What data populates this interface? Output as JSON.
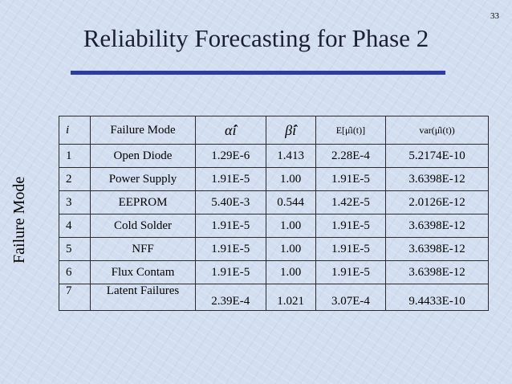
{
  "slide_number": "33",
  "title": "Reliability Forecasting for Phase 2",
  "side_label": "Failure Mode",
  "table": {
    "headers": {
      "index": "i",
      "mode": "Failure Mode",
      "alpha": "α̂i",
      "beta": "β̂i",
      "expectation": "E[μ̂i(t)]",
      "variance": "var(μ̂i(t))"
    },
    "rows": [
      {
        "i": "1",
        "mode": "Open Diode",
        "alpha": "1.29E-6",
        "beta": "1.413",
        "e": "2.28E-4",
        "var": "5.2174E-10"
      },
      {
        "i": "2",
        "mode": "Power Supply",
        "alpha": "1.91E-5",
        "beta": "1.00",
        "e": "1.91E-5",
        "var": "3.6398E-12"
      },
      {
        "i": "3",
        "mode": "EEPROM",
        "alpha": "5.40E-3",
        "beta": "0.544",
        "e": "1.42E-5",
        "var": "2.0126E-12"
      },
      {
        "i": "4",
        "mode": "Cold Solder",
        "alpha": "1.91E-5",
        "beta": "1.00",
        "e": "1.91E-5",
        "var": "3.6398E-12"
      },
      {
        "i": "5",
        "mode": "NFF",
        "alpha": "1.91E-5",
        "beta": "1.00",
        "e": "1.91E-5",
        "var": "3.6398E-12"
      },
      {
        "i": "6",
        "mode": "Flux Contam",
        "alpha": "1.91E-5",
        "beta": "1.00",
        "e": "1.91E-5",
        "var": "3.6398E-12"
      },
      {
        "i": "7",
        "mode": "Latent Failures",
        "alpha": "2.39E-4",
        "beta": "1.021",
        "e": "3.07E-4",
        "var": "9.4433E-10"
      }
    ]
  }
}
